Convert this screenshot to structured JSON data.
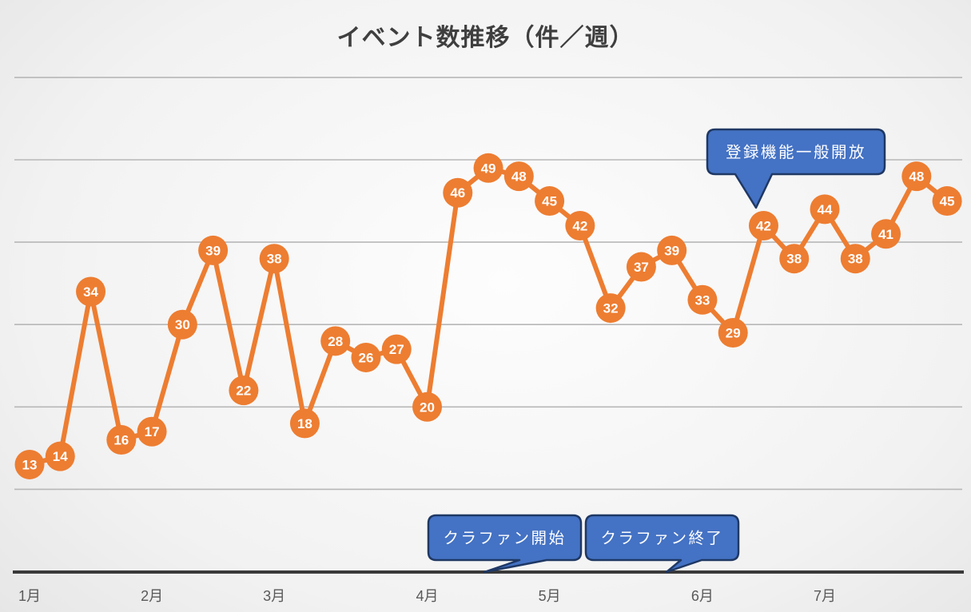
{
  "title": "イベント数推移（件／週）",
  "colors": {
    "series_orange": "#ED7D31",
    "marker_text": "#ffffff",
    "callout_fill": "#4472C4",
    "callout_border": "#1F3864",
    "callout_text": "#ffffff",
    "gridline": "#b7b7b7",
    "axis_line": "#3a3a3a",
    "axis_label": "#595959",
    "title_text": "#3f3f3f"
  },
  "chart_data": {
    "type": "line",
    "title": "イベント数推移（件／週）",
    "xlabel": "",
    "ylabel": "",
    "ylim": [
      0,
      60
    ],
    "grid_step": 10,
    "grid": "horizontal-only",
    "legend": "none",
    "series": [
      {
        "name": "イベント数",
        "color": "#ED7D31",
        "values": [
          13,
          14,
          34,
          16,
          17,
          30,
          39,
          22,
          38,
          18,
          28,
          26,
          27,
          20,
          46,
          49,
          48,
          45,
          42,
          32,
          37,
          39,
          33,
          29,
          42,
          38,
          44,
          38,
          41,
          48,
          45
        ]
      }
    ],
    "point_labels_shown": true,
    "x_axis_labels": [
      {
        "label": "1月",
        "week_index": 0
      },
      {
        "label": "2月",
        "week_index": 4
      },
      {
        "label": "3月",
        "week_index": 8
      },
      {
        "label": "4月",
        "week_index": 13
      },
      {
        "label": "5月",
        "week_index": 17
      },
      {
        "label": "6月",
        "week_index": 22
      },
      {
        "label": "7月",
        "week_index": 26
      }
    ],
    "annotations": [
      {
        "id": "register-open",
        "label": "登録機能一般開放",
        "points_to": "data-point-week-25 (value 42)",
        "placement": "above-line"
      },
      {
        "id": "crowdfund-start",
        "label": "クラファン開始",
        "points_to": "x-axis mid-April",
        "placement": "bottom"
      },
      {
        "id": "crowdfund-end",
        "label": "クラファン終了",
        "points_to": "x-axis early-June",
        "placement": "bottom"
      }
    ]
  }
}
